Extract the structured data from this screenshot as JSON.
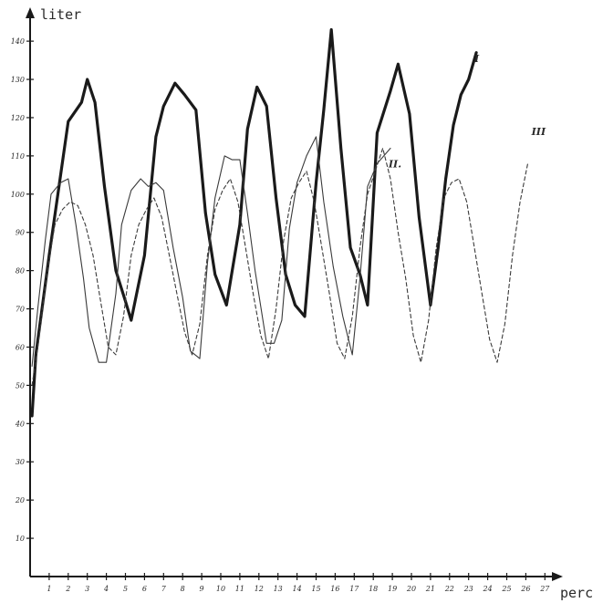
{
  "chart_data": {
    "type": "line",
    "xlabel": "perc",
    "ylabel": "liter",
    "xlim": [
      0,
      27.5
    ],
    "ylim": [
      0,
      145
    ],
    "x_ticks": [
      1,
      2,
      3,
      4,
      5,
      6,
      7,
      8,
      9,
      10,
      11,
      12,
      13,
      14,
      15,
      16,
      17,
      18,
      19,
      20,
      21,
      22,
      23,
      24,
      25,
      26,
      27
    ],
    "x_tick_labels": [
      "1",
      "2",
      "3",
      "4",
      "5",
      "6",
      "7",
      "8",
      "9",
      "10",
      "11",
      "12",
      "13",
      "14",
      "15",
      "16",
      "17",
      "18",
      "19",
      "20",
      "21",
      "22",
      "23",
      "24",
      "25",
      "26",
      "27"
    ],
    "y_ticks": [
      10,
      20,
      30,
      40,
      50,
      60,
      70,
      80,
      90,
      100,
      110,
      120,
      130,
      140
    ],
    "y_tick_labels": [
      "10",
      "20",
      "30",
      "40",
      "50",
      "60",
      "70",
      "80",
      "90",
      "100",
      "110",
      "120",
      "130",
      "140"
    ],
    "grid": false,
    "legend": "none",
    "series": [
      {
        "name": "I",
        "style": "solid-thick",
        "color": "#1a1a1a",
        "x": [
          0.1,
          0.3,
          1.0,
          2.0,
          2.7,
          3.0,
          3.4,
          3.9,
          4.5,
          5.0,
          5.3,
          6.0,
          6.6,
          7.0,
          7.6,
          8.1,
          8.7,
          9.2,
          9.7,
          10.3,
          11.0,
          11.4,
          11.9,
          12.4,
          12.9,
          13.4,
          13.9,
          14.4,
          15.0,
          15.4,
          15.8,
          16.3,
          16.8,
          17.3,
          17.7,
          18.2,
          18.9,
          19.3,
          19.9,
          20.4,
          21.0,
          21.4,
          21.8,
          22.2,
          22.6,
          23.0,
          23.4
        ],
        "y": [
          42,
          58,
          84,
          119,
          124,
          130,
          124,
          102,
          80,
          72,
          67,
          84,
          115,
          123,
          129,
          126,
          122,
          95,
          79,
          71,
          92,
          117,
          128,
          123,
          99,
          79,
          71,
          68,
          103,
          122,
          143,
          112,
          86,
          79,
          71,
          116,
          127,
          134,
          121,
          94,
          71,
          86,
          104,
          118,
          126,
          130,
          137
        ]
      },
      {
        "name": "II",
        "style": "solid-thin",
        "color": "#3a3a3a",
        "x": [
          0.1,
          0.4,
          0.8,
          1.1,
          1.6,
          2.0,
          2.4,
          2.8,
          3.1,
          3.6,
          4.0,
          4.5,
          4.8,
          5.3,
          5.8,
          6.2,
          6.6,
          7.0,
          7.5,
          8.0,
          8.4,
          8.9,
          9.3,
          9.7,
          10.2,
          10.6,
          11.0,
          11.4,
          11.8,
          12.4,
          12.8,
          13.2,
          13.6,
          14.0,
          14.5,
          15.0,
          15.4,
          15.9,
          16.4,
          16.9,
          17.3,
          17.7,
          18.2,
          18.9
        ],
        "y": [
          55,
          70,
          88,
          100,
          103,
          104,
          92,
          78,
          65,
          56,
          56,
          74,
          92,
          101,
          104,
          102,
          103,
          101,
          86,
          73,
          59,
          57,
          82,
          99,
          110,
          109,
          109,
          95,
          80,
          61,
          61,
          67,
          91,
          103,
          110,
          115,
          98,
          81,
          68,
          58,
          78,
          102,
          108,
          112
        ]
      },
      {
        "name": "III",
        "style": "dashed",
        "color": "#3a3a3a",
        "x": [
          0.1,
          0.4,
          0.9,
          1.3,
          1.7,
          2.1,
          2.5,
          2.9,
          3.3,
          3.7,
          4.1,
          4.5,
          4.9,
          5.3,
          5.7,
          6.1,
          6.5,
          6.9,
          7.3,
          7.7,
          8.1,
          8.5,
          8.9,
          9.3,
          9.7,
          10.1,
          10.5,
          10.9,
          11.3,
          11.7,
          12.1,
          12.5,
          12.9,
          13.3,
          13.7,
          14.1,
          14.5,
          14.9,
          15.3,
          15.7,
          16.1,
          16.5,
          16.9,
          17.3,
          17.7,
          18.1,
          18.5,
          18.9,
          19.3,
          19.7,
          20.1,
          20.5,
          20.9,
          21.3,
          21.7,
          22.1,
          22.5,
          22.9,
          23.3,
          23.7,
          24.1,
          24.5,
          24.9,
          25.3,
          25.7,
          26.1
        ],
        "y": [
          50,
          60,
          80,
          92,
          96,
          98,
          97,
          92,
          84,
          72,
          60,
          58,
          68,
          84,
          92,
          96,
          99,
          94,
          84,
          74,
          64,
          58,
          66,
          84,
          96,
          101,
          104,
          98,
          86,
          74,
          63,
          57,
          70,
          88,
          99,
          103,
          106,
          98,
          86,
          74,
          61,
          57,
          68,
          86,
          100,
          106,
          112,
          104,
          90,
          78,
          63,
          56,
          67,
          86,
          99,
          103,
          104,
          98,
          86,
          74,
          62,
          56,
          66,
          84,
          98,
          108
        ]
      }
    ],
    "annotations": [
      {
        "text": "I",
        "x": 23.3,
        "y": 134.5
      },
      {
        "text": "II.",
        "x": 18.8,
        "y": 107
      },
      {
        "text": "III",
        "x": 26.3,
        "y": 115.5
      }
    ]
  }
}
